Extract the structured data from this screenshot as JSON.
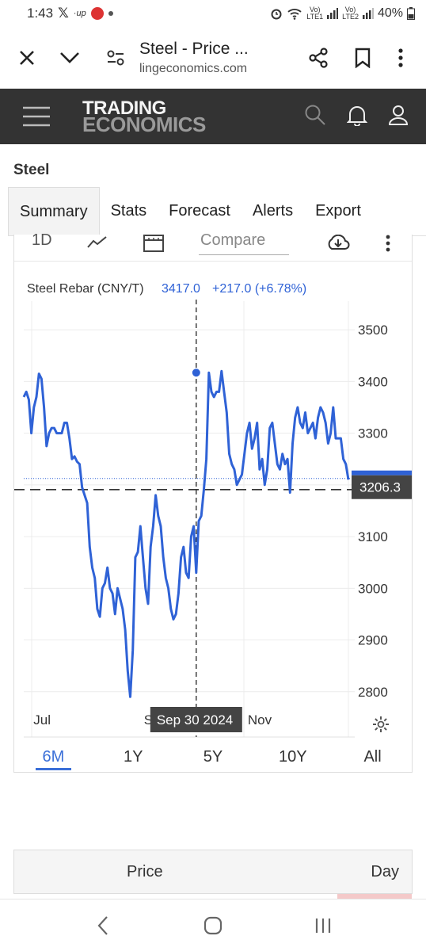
{
  "status_bar": {
    "time": "1:43",
    "battery": "40%",
    "sim1_top": "Vo)",
    "sim1_bottom": "LTE1",
    "sim2_top": "Vo)",
    "sim2_bottom": "LTE2",
    "up_label": "up"
  },
  "browser": {
    "title": "Steel - Price ...",
    "url": "lingeconomics.com"
  },
  "brand": {
    "line1": "TRADING",
    "line2": "ECONOMICS"
  },
  "page": {
    "title": "Steel"
  },
  "tabs": [
    {
      "label": "Summary",
      "active": true
    },
    {
      "label": "Stats"
    },
    {
      "label": "Forecast"
    },
    {
      "label": "Alerts"
    },
    {
      "label": "Export"
    }
  ],
  "toolbar": {
    "interval": "1D",
    "compare_placeholder": "Compare"
  },
  "chart_data": {
    "type": "line",
    "series_title": "Steel Rebar (CNY/T)",
    "hover_value": "3417.0",
    "hover_change": "+217.0 (+6.78%)",
    "hover_date": "Sep 30 2024",
    "current_value": "3206.3",
    "reference_value": 3200,
    "ylim": [
      2720,
      3540
    ],
    "y_ticks": [
      "3500",
      "3400",
      "3300",
      "3200",
      "3100",
      "3000",
      "2900",
      "2800"
    ],
    "x_labels": [
      {
        "label": "Jul",
        "pos": 0.03
      },
      {
        "label": "Sep",
        "pos": 0.37
      },
      {
        "label": "Nov",
        "pos": 0.69
      }
    ],
    "accent_color": "#2f62d6",
    "hover_pos": 0.53,
    "values": [
      3370,
      3380,
      3365,
      3300,
      3350,
      3370,
      3415,
      3405,
      3350,
      3275,
      3300,
      3310,
      3310,
      3300,
      3300,
      3300,
      3320,
      3320,
      3290,
      3250,
      3255,
      3245,
      3240,
      3195,
      3180,
      3165,
      3080,
      3040,
      3020,
      2960,
      2945,
      3000,
      3010,
      3040,
      3000,
      2990,
      2950,
      3000,
      2980,
      2960,
      2920,
      2840,
      2790,
      2880,
      3060,
      3070,
      3120,
      3060,
      3000,
      2970,
      3080,
      3120,
      3180,
      3140,
      3120,
      3060,
      3020,
      3000,
      2960,
      2940,
      2950,
      2990,
      3060,
      3080,
      3030,
      3020,
      3100,
      3120,
      3030,
      3130,
      3140,
      3190,
      3250,
      3417,
      3380,
      3370,
      3380,
      3380,
      3420,
      3380,
      3340,
      3260,
      3240,
      3230,
      3200,
      3210,
      3220,
      3260,
      3300,
      3320,
      3270,
      3290,
      3320,
      3230,
      3250,
      3200,
      3230,
      3310,
      3320,
      3280,
      3240,
      3230,
      3260,
      3240,
      3250,
      3185,
      3280,
      3330,
      3350,
      3320,
      3310,
      3340,
      3300,
      3310,
      3320,
      3290,
      3330,
      3350,
      3340,
      3320,
      3280,
      3300,
      3350,
      3290,
      3290,
      3290,
      3250,
      3240,
      3210
    ]
  },
  "periods": [
    {
      "label": "6M",
      "active": true
    },
    {
      "label": "1Y"
    },
    {
      "label": "5Y"
    },
    {
      "label": "10Y"
    },
    {
      "label": "All"
    }
  ],
  "table": {
    "col_price": "Price",
    "col_day": "Day"
  }
}
